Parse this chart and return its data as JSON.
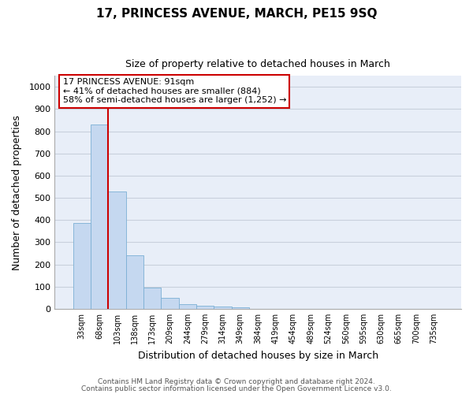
{
  "title": "17, PRINCESS AVENUE, MARCH, PE15 9SQ",
  "subtitle": "Size of property relative to detached houses in March",
  "xlabel": "Distribution of detached houses by size in March",
  "ylabel": "Number of detached properties",
  "bar_labels": [
    "33sqm",
    "68sqm",
    "103sqm",
    "138sqm",
    "173sqm",
    "209sqm",
    "244sqm",
    "279sqm",
    "314sqm",
    "349sqm",
    "384sqm",
    "419sqm",
    "454sqm",
    "489sqm",
    "524sqm",
    "560sqm",
    "595sqm",
    "630sqm",
    "665sqm",
    "700sqm",
    "735sqm"
  ],
  "bar_values": [
    385,
    830,
    530,
    240,
    95,
    50,
    20,
    15,
    10,
    7,
    0,
    0,
    0,
    0,
    0,
    0,
    0,
    0,
    0,
    0,
    0
  ],
  "bar_color": "#c5d8f0",
  "bar_edge_color": "#7bafd4",
  "vline_x": 1.5,
  "vline_color": "#cc0000",
  "ylim": [
    0,
    1050
  ],
  "yticks": [
    0,
    100,
    200,
    300,
    400,
    500,
    600,
    700,
    800,
    900,
    1000
  ],
  "annotation_title": "17 PRINCESS AVENUE: 91sqm",
  "annotation_line1": "← 41% of detached houses are smaller (884)",
  "annotation_line2": "58% of semi-detached houses are larger (1,252) →",
  "annotation_box_color": "#ffffff",
  "annotation_box_edge": "#cc0000",
  "footnote1": "Contains HM Land Registry data © Crown copyright and database right 2024.",
  "footnote2": "Contains public sector information licensed under the Open Government Licence v3.0.",
  "fig_background_color": "#ffffff",
  "plot_background_color": "#e8eef8",
  "grid_color": "#c8d0dc",
  "figsize": [
    6.0,
    5.0
  ],
  "dpi": 100
}
